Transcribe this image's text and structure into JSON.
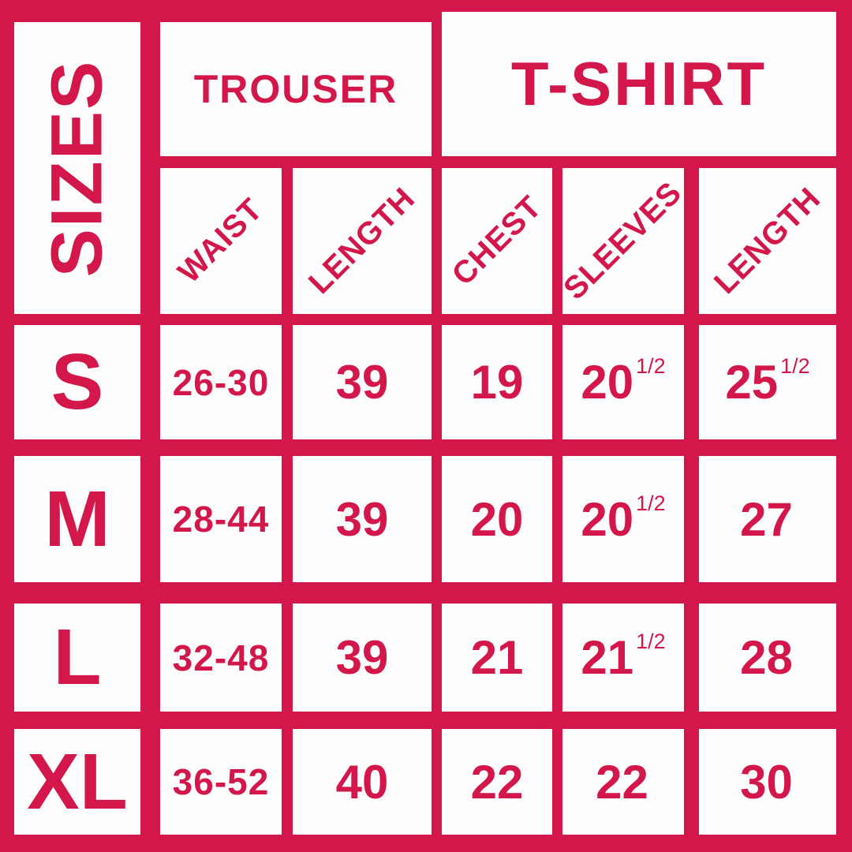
{
  "colors": {
    "accent": "#D4174B",
    "cell": "#FDFDFD"
  },
  "corner": {
    "label": "SIZES"
  },
  "groups": {
    "trouser": {
      "label": "TROUSER"
    },
    "tshirt": {
      "label": "T-SHIRT"
    }
  },
  "columns": {
    "waist": {
      "label": "WAIST"
    },
    "trouser_length": {
      "label": "LENGTH"
    },
    "chest": {
      "label": "CHEST"
    },
    "sleeves": {
      "label": "SLEEVES"
    },
    "tshirt_length": {
      "label": "LENGTH"
    }
  },
  "rows": [
    {
      "size": "S",
      "waist": "26-30",
      "trouser_length": "39",
      "chest": "19",
      "sleeves": "20",
      "sleeves_frac": "1/2",
      "tshirt_length": "25",
      "tshirt_length_frac": "1/2"
    },
    {
      "size": "M",
      "waist": "28-44",
      "trouser_length": "39",
      "chest": "20",
      "sleeves": "20",
      "sleeves_frac": "1/2",
      "tshirt_length": "27",
      "tshirt_length_frac": ""
    },
    {
      "size": "L",
      "waist": "32-48",
      "trouser_length": "39",
      "chest": "21",
      "sleeves": "21",
      "sleeves_frac": "1/2",
      "tshirt_length": "28",
      "tshirt_length_frac": ""
    },
    {
      "size": "XL",
      "waist": "36-52",
      "trouser_length": "40",
      "chest": "22",
      "sleeves": "22",
      "sleeves_frac": "",
      "tshirt_length": "30",
      "tshirt_length_frac": ""
    }
  ],
  "chart_data": {
    "type": "table",
    "title": "SIZES",
    "column_groups": [
      {
        "label": "TROUSER",
        "columns": [
          "WAIST",
          "LENGTH"
        ]
      },
      {
        "label": "T-SHIRT",
        "columns": [
          "CHEST",
          "SLEEVES",
          "LENGTH"
        ]
      }
    ],
    "columns": [
      "SIZE",
      "TROUSER WAIST",
      "TROUSER LENGTH",
      "T-SHIRT CHEST",
      "T-SHIRT SLEEVES",
      "T-SHIRT LENGTH"
    ],
    "rows": [
      [
        "S",
        "26-30",
        "39",
        "19",
        "20 1/2",
        "25 1/2"
      ],
      [
        "M",
        "28-44",
        "39",
        "20",
        "20 1/2",
        "27"
      ],
      [
        "L",
        "32-48",
        "39",
        "21",
        "21 1/2",
        "28"
      ],
      [
        "XL",
        "36-52",
        "40",
        "22",
        "22",
        "30"
      ]
    ]
  }
}
